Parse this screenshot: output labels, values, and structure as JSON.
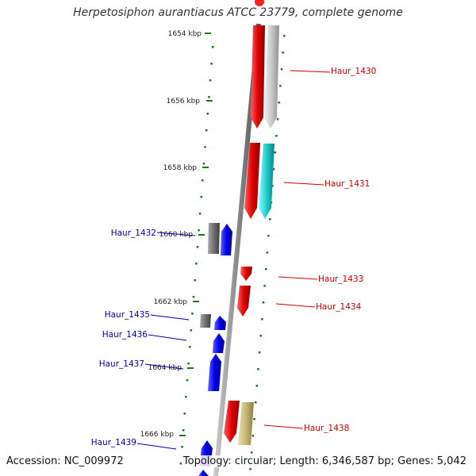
{
  "title": "Herpetosiphon aurantiacus ATCC 23779, complete genome",
  "accession": "Accession: NC_009972",
  "summary": "Topology: circular; Length: 6,346,587 bp; Genes: 5,042",
  "colors": {
    "forward_gene": "#e00000",
    "reverse_gene": "#0000ee",
    "forward_label": "#cc0000",
    "reverse_label": "#0000aa",
    "scale_ticks": "#1a7a1a",
    "backbone": "#8a8a8a"
  },
  "kbp_markers": [
    "1654 kbp",
    "1656 kbp",
    "1658 kbp",
    "1660 kbp",
    "1662 kbp",
    "1664 kbp",
    "1666 kbp"
  ],
  "forward_genes": [
    {
      "label": "Haur_1430",
      "partner_color": "#c8c8c8"
    },
    {
      "label": "Haur_1431",
      "partner_color": "#22cccc"
    },
    {
      "label": "Haur_1433",
      "partner_color": null
    },
    {
      "label": "Haur_1434",
      "partner_color": null
    },
    {
      "label": "Haur_1438",
      "partner_color": "#c8b878"
    }
  ],
  "reverse_genes": [
    {
      "label": "Haur_1432",
      "partner_color": "#707070"
    },
    {
      "label": "Haur_1435",
      "partner_color": "#707070"
    },
    {
      "label": "Haur_1436",
      "partner_color": null
    },
    {
      "label": "Haur_1437",
      "partner_color": null
    },
    {
      "label": "Haur_1439",
      "partner_color": null
    }
  ]
}
